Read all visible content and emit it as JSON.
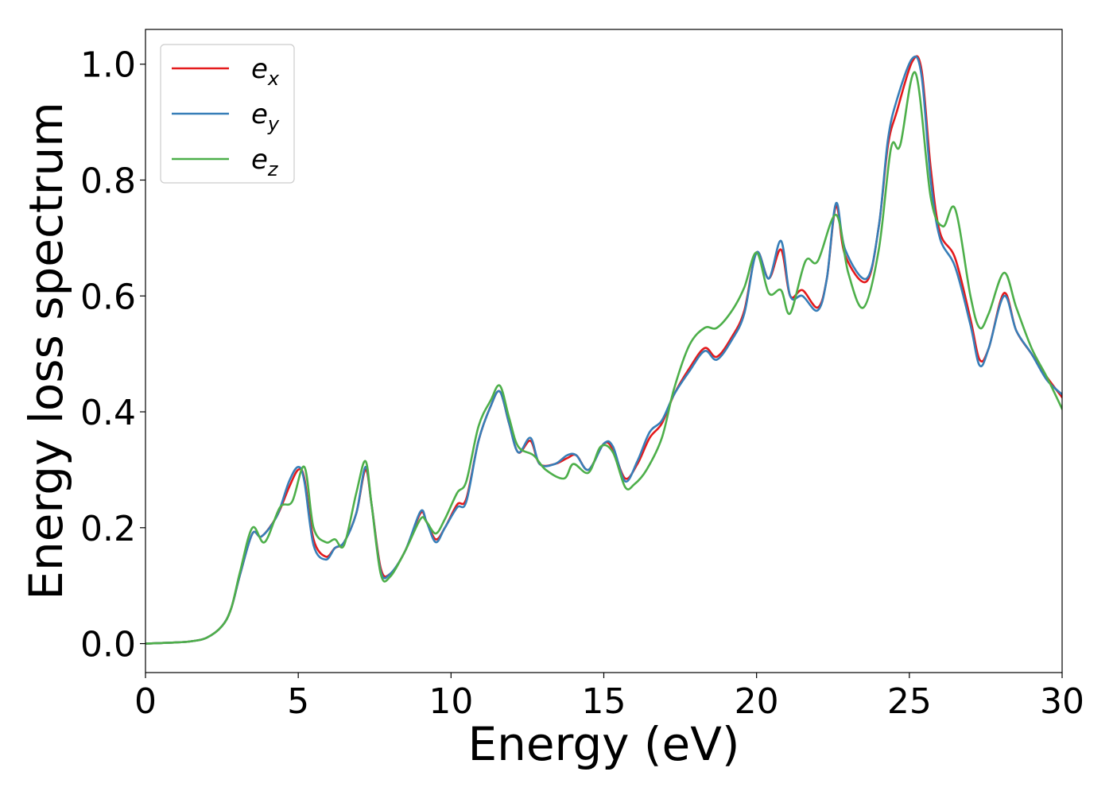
{
  "chart_data": {
    "type": "line",
    "title": "",
    "xlabel": "Energy (eV)",
    "ylabel": "Energy loss spectrum",
    "xlim": [
      0,
      30
    ],
    "ylim": [
      -0.05,
      1.06
    ],
    "xticks": [
      0,
      5,
      10,
      15,
      20,
      25,
      30
    ],
    "xtick_labels": [
      "0",
      "5",
      "10",
      "15",
      "20",
      "25",
      "30"
    ],
    "yticks": [
      0.0,
      0.2,
      0.4,
      0.6,
      0.8,
      1.0
    ],
    "ytick_labels": [
      "0.0",
      "0.2",
      "0.4",
      "0.6",
      "0.8",
      "1.0"
    ],
    "grid": false,
    "legend_position": "top-left",
    "series": [
      {
        "name": "e_x",
        "label_base": "e",
        "label_sub": "x",
        "color": "#e41a1c",
        "points": [
          [
            0,
            0
          ],
          [
            1,
            0.002
          ],
          [
            1.5,
            0.004
          ],
          [
            2,
            0.01
          ],
          [
            2.5,
            0.03
          ],
          [
            2.8,
            0.06
          ],
          [
            3.1,
            0.12
          ],
          [
            3.5,
            0.19
          ],
          [
            3.8,
            0.185
          ],
          [
            4.3,
            0.22
          ],
          [
            4.7,
            0.27
          ],
          [
            5.0,
            0.3
          ],
          [
            5.2,
            0.285
          ],
          [
            5.5,
            0.18
          ],
          [
            5.9,
            0.15
          ],
          [
            6.2,
            0.165
          ],
          [
            6.5,
            0.175
          ],
          [
            6.9,
            0.225
          ],
          [
            7.2,
            0.3
          ],
          [
            7.4,
            0.24
          ],
          [
            7.7,
            0.13
          ],
          [
            8.0,
            0.12
          ],
          [
            8.5,
            0.16
          ],
          [
            9.0,
            0.225
          ],
          [
            9.2,
            0.21
          ],
          [
            9.5,
            0.18
          ],
          [
            9.8,
            0.2
          ],
          [
            10.2,
            0.24
          ],
          [
            10.5,
            0.25
          ],
          [
            10.9,
            0.35
          ],
          [
            11.3,
            0.41
          ],
          [
            11.6,
            0.435
          ],
          [
            11.9,
            0.38
          ],
          [
            12.2,
            0.33
          ],
          [
            12.6,
            0.35
          ],
          [
            12.9,
            0.31
          ],
          [
            13.4,
            0.31
          ],
          [
            13.8,
            0.32
          ],
          [
            14.1,
            0.325
          ],
          [
            14.5,
            0.3
          ],
          [
            15.0,
            0.345
          ],
          [
            15.3,
            0.335
          ],
          [
            15.7,
            0.285
          ],
          [
            16.1,
            0.31
          ],
          [
            16.5,
            0.355
          ],
          [
            16.9,
            0.38
          ],
          [
            17.3,
            0.43
          ],
          [
            17.8,
            0.475
          ],
          [
            18.3,
            0.51
          ],
          [
            18.7,
            0.495
          ],
          [
            19.2,
            0.53
          ],
          [
            19.6,
            0.575
          ],
          [
            20.0,
            0.675
          ],
          [
            20.4,
            0.63
          ],
          [
            20.8,
            0.68
          ],
          [
            21.1,
            0.6
          ],
          [
            21.5,
            0.61
          ],
          [
            22.0,
            0.58
          ],
          [
            22.3,
            0.63
          ],
          [
            22.6,
            0.755
          ],
          [
            22.9,
            0.67
          ],
          [
            23.6,
            0.625
          ],
          [
            24.0,
            0.72
          ],
          [
            24.3,
            0.86
          ],
          [
            24.6,
            0.92
          ],
          [
            25.1,
            1.005
          ],
          [
            25.4,
            0.99
          ],
          [
            25.7,
            0.82
          ],
          [
            26.0,
            0.71
          ],
          [
            26.5,
            0.665
          ],
          [
            27.0,
            0.56
          ],
          [
            27.3,
            0.49
          ],
          [
            27.6,
            0.51
          ],
          [
            28.1,
            0.605
          ],
          [
            28.5,
            0.54
          ],
          [
            29.0,
            0.5
          ],
          [
            29.5,
            0.46
          ],
          [
            30.0,
            0.425
          ]
        ]
      },
      {
        "name": "e_y",
        "label_base": "e",
        "label_sub": "y",
        "color": "#377eb8",
        "points": [
          [
            0,
            0
          ],
          [
            1,
            0.002
          ],
          [
            1.5,
            0.004
          ],
          [
            2,
            0.01
          ],
          [
            2.5,
            0.03
          ],
          [
            2.8,
            0.06
          ],
          [
            3.1,
            0.12
          ],
          [
            3.5,
            0.19
          ],
          [
            3.8,
            0.185
          ],
          [
            4.3,
            0.22
          ],
          [
            4.7,
            0.28
          ],
          [
            5.0,
            0.305
          ],
          [
            5.2,
            0.28
          ],
          [
            5.5,
            0.17
          ],
          [
            5.9,
            0.145
          ],
          [
            6.2,
            0.165
          ],
          [
            6.5,
            0.175
          ],
          [
            6.9,
            0.225
          ],
          [
            7.2,
            0.305
          ],
          [
            7.4,
            0.24
          ],
          [
            7.7,
            0.125
          ],
          [
            8.0,
            0.12
          ],
          [
            8.5,
            0.16
          ],
          [
            9.0,
            0.228
          ],
          [
            9.2,
            0.21
          ],
          [
            9.5,
            0.175
          ],
          [
            9.8,
            0.2
          ],
          [
            10.2,
            0.235
          ],
          [
            10.5,
            0.245
          ],
          [
            10.9,
            0.35
          ],
          [
            11.3,
            0.41
          ],
          [
            11.6,
            0.435
          ],
          [
            11.9,
            0.38
          ],
          [
            12.2,
            0.33
          ],
          [
            12.6,
            0.355
          ],
          [
            12.9,
            0.31
          ],
          [
            13.4,
            0.31
          ],
          [
            13.8,
            0.325
          ],
          [
            14.1,
            0.325
          ],
          [
            14.5,
            0.3
          ],
          [
            15.0,
            0.345
          ],
          [
            15.3,
            0.34
          ],
          [
            15.7,
            0.28
          ],
          [
            16.1,
            0.315
          ],
          [
            16.5,
            0.365
          ],
          [
            16.9,
            0.385
          ],
          [
            17.3,
            0.43
          ],
          [
            17.8,
            0.47
          ],
          [
            18.3,
            0.505
          ],
          [
            18.7,
            0.49
          ],
          [
            19.2,
            0.525
          ],
          [
            19.6,
            0.57
          ],
          [
            20.0,
            0.675
          ],
          [
            20.4,
            0.63
          ],
          [
            20.8,
            0.695
          ],
          [
            21.1,
            0.6
          ],
          [
            21.5,
            0.6
          ],
          [
            22.0,
            0.575
          ],
          [
            22.3,
            0.63
          ],
          [
            22.6,
            0.76
          ],
          [
            22.9,
            0.68
          ],
          [
            23.6,
            0.63
          ],
          [
            24.0,
            0.72
          ],
          [
            24.3,
            0.87
          ],
          [
            24.6,
            0.94
          ],
          [
            25.1,
            1.01
          ],
          [
            25.4,
            0.98
          ],
          [
            25.7,
            0.8
          ],
          [
            26.0,
            0.7
          ],
          [
            26.5,
            0.65
          ],
          [
            27.0,
            0.55
          ],
          [
            27.3,
            0.48
          ],
          [
            27.6,
            0.51
          ],
          [
            28.1,
            0.6
          ],
          [
            28.5,
            0.54
          ],
          [
            29.0,
            0.5
          ],
          [
            29.5,
            0.455
          ],
          [
            30.0,
            0.43
          ]
        ]
      },
      {
        "name": "e_z",
        "label_base": "e",
        "label_sub": "z",
        "color": "#4daf4a",
        "points": [
          [
            0,
            0
          ],
          [
            1,
            0.002
          ],
          [
            1.5,
            0.004
          ],
          [
            2,
            0.01
          ],
          [
            2.5,
            0.03
          ],
          [
            2.8,
            0.06
          ],
          [
            3.1,
            0.125
          ],
          [
            3.5,
            0.2
          ],
          [
            3.9,
            0.175
          ],
          [
            4.4,
            0.235
          ],
          [
            4.8,
            0.245
          ],
          [
            5.2,
            0.305
          ],
          [
            5.5,
            0.2
          ],
          [
            5.9,
            0.175
          ],
          [
            6.2,
            0.18
          ],
          [
            6.5,
            0.17
          ],
          [
            6.9,
            0.26
          ],
          [
            7.2,
            0.315
          ],
          [
            7.4,
            0.24
          ],
          [
            7.7,
            0.12
          ],
          [
            8.0,
            0.115
          ],
          [
            8.5,
            0.16
          ],
          [
            9.0,
            0.215
          ],
          [
            9.2,
            0.21
          ],
          [
            9.5,
            0.19
          ],
          [
            9.8,
            0.215
          ],
          [
            10.2,
            0.26
          ],
          [
            10.5,
            0.28
          ],
          [
            10.9,
            0.375
          ],
          [
            11.3,
            0.42
          ],
          [
            11.6,
            0.445
          ],
          [
            11.9,
            0.39
          ],
          [
            12.2,
            0.34
          ],
          [
            12.7,
            0.325
          ],
          [
            13.1,
            0.3
          ],
          [
            13.7,
            0.285
          ],
          [
            14.0,
            0.31
          ],
          [
            14.5,
            0.295
          ],
          [
            14.9,
            0.34
          ],
          [
            15.3,
            0.33
          ],
          [
            15.7,
            0.27
          ],
          [
            16.0,
            0.275
          ],
          [
            16.4,
            0.3
          ],
          [
            16.9,
            0.355
          ],
          [
            17.3,
            0.44
          ],
          [
            17.8,
            0.515
          ],
          [
            18.3,
            0.545
          ],
          [
            18.7,
            0.545
          ],
          [
            19.2,
            0.575
          ],
          [
            19.6,
            0.615
          ],
          [
            20.0,
            0.675
          ],
          [
            20.4,
            0.605
          ],
          [
            20.8,
            0.61
          ],
          [
            21.1,
            0.57
          ],
          [
            21.6,
            0.66
          ],
          [
            22.0,
            0.66
          ],
          [
            22.6,
            0.74
          ],
          [
            23.0,
            0.64
          ],
          [
            23.5,
            0.58
          ],
          [
            24.0,
            0.68
          ],
          [
            24.4,
            0.855
          ],
          [
            24.7,
            0.86
          ],
          [
            25.2,
            0.985
          ],
          [
            25.7,
            0.77
          ],
          [
            26.1,
            0.72
          ],
          [
            26.5,
            0.75
          ],
          [
            27.0,
            0.6
          ],
          [
            27.3,
            0.545
          ],
          [
            27.6,
            0.57
          ],
          [
            28.1,
            0.64
          ],
          [
            28.5,
            0.58
          ],
          [
            29.0,
            0.51
          ],
          [
            29.5,
            0.46
          ],
          [
            30.0,
            0.405
          ]
        ]
      }
    ]
  }
}
